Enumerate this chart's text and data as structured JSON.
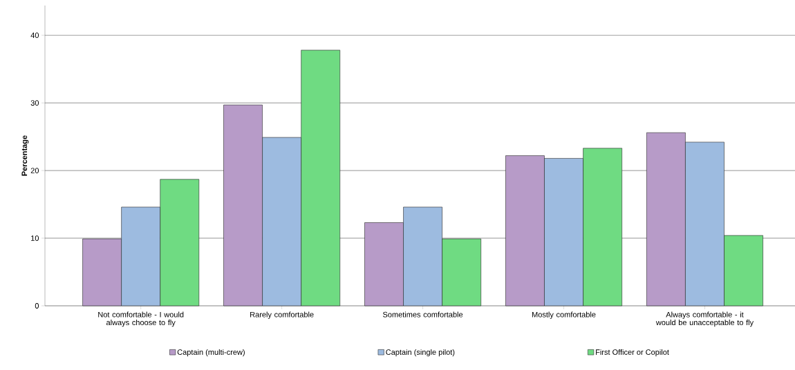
{
  "chart_data": {
    "type": "bar",
    "ylabel": "Percentage",
    "categories": [
      "Not comfortable - I would always choose to fly",
      "Rarely comfortable",
      "Sometimes comfortable",
      "Mostly comfortable",
      "Always comfortable - it would be unacceptable to fly"
    ],
    "series": [
      {
        "name": "Captain (multi-crew)",
        "color": "#b79bc8",
        "values": [
          9.9,
          29.7,
          12.3,
          22.2,
          25.6
        ]
      },
      {
        "name": "Captain (single pilot)",
        "color": "#9dbbe0",
        "values": [
          14.6,
          24.9,
          14.6,
          21.8,
          24.2
        ]
      },
      {
        "name": "First Officer or Copilot",
        "color": "#6fdb82",
        "values": [
          18.7,
          37.8,
          9.9,
          23.3,
          10.4
        ]
      }
    ],
    "ylim": [
      0,
      44.4
    ],
    "yticks": [
      0,
      10,
      20,
      30,
      40
    ],
    "grid": "y",
    "legend": "bottom"
  }
}
